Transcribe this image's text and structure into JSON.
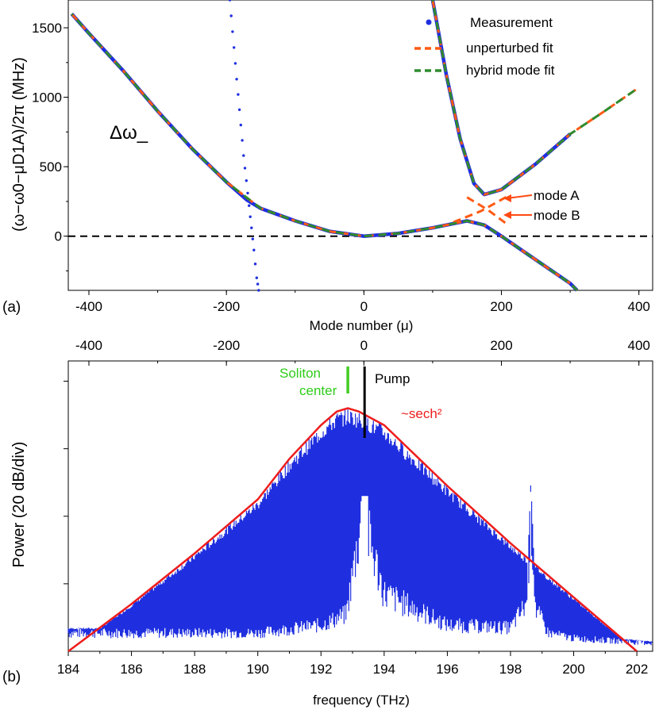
{
  "chart_data": [
    {
      "panel": "(a)",
      "type": "scatter",
      "xlabel": "Mode number (μ)",
      "ylabel": "(ω−ω0−μD1A)/2π (MHz)",
      "xlim": [
        -430,
        420
      ],
      "ylim": [
        -390,
        1700
      ],
      "x_ticks": [
        -400,
        -200,
        0,
        200,
        400
      ],
      "y_ticks": [
        0,
        500,
        1000,
        1500
      ],
      "legend": {
        "placement": "top-right",
        "entries": [
          "Measurement",
          "unperturbed fit",
          "hybrid mode fit"
        ]
      },
      "colors": {
        "measurement": "#1f2fe0",
        "unperturbed_fit": "#ff5a14",
        "hybrid_fit": "#2e8b2e",
        "zero_line": "#000000"
      },
      "annotations": {
        "branch_label": "Δω_",
        "mode_a": "mode A",
        "mode_b": "mode B"
      },
      "series": [
        {
          "name": "Measurement",
          "style": "dots",
          "segments": [
            [
              [
                -425,
                1600
              ],
              [
                -400,
                1460
              ],
              [
                -350,
                1190
              ],
              [
                -300,
                900
              ],
              [
                -250,
                630
              ],
              [
                -200,
                390
              ],
              [
                -170,
                260
              ],
              [
                -150,
                200
              ],
              [
                -100,
                110
              ],
              [
                -50,
                35
              ],
              [
                0,
                0
              ],
              [
                50,
                20
              ],
              [
                100,
                60
              ],
              [
                150,
                110
              ],
              [
                175,
                80
              ],
              [
                200,
                0
              ],
              [
                250,
                -170
              ],
              [
                300,
                -340
              ],
              [
                310,
                -390
              ]
            ],
            [
              [
                100,
                1700
              ],
              [
                120,
                1160
              ],
              [
                140,
                700
              ],
              [
                160,
                380
              ],
              [
                175,
                300
              ],
              [
                200,
                335
              ],
              [
                250,
                520
              ],
              [
                300,
                735
              ]
            ],
            [
              [
                -195,
                1700
              ],
              [
                -185,
                1130
              ],
              [
                -175,
                580
              ],
              [
                -167,
                220
              ],
              [
                -160,
                -100
              ],
              [
                -156,
                -300
              ],
              [
                -153,
                -390
              ]
            ]
          ]
        },
        {
          "name": "unperturbed fit",
          "style": "dashed",
          "segments": [
            [
              [
                -425,
                1600
              ],
              [
                -400,
                1460
              ],
              [
                -350,
                1190
              ],
              [
                -300,
                900
              ],
              [
                -250,
                630
              ],
              [
                -200,
                390
              ],
              [
                -150,
                200
              ],
              [
                -100,
                110
              ],
              [
                -50,
                35
              ],
              [
                0,
                0
              ],
              [
                50,
                20
              ],
              [
                100,
                60
              ],
              [
                150,
                110
              ],
              [
                175,
                80
              ],
              [
                200,
                0
              ],
              [
                250,
                -170
              ],
              [
                300,
                -340
              ],
              [
                310,
                -390
              ]
            ],
            [
              [
                100,
                1700
              ],
              [
                120,
                1160
              ],
              [
                140,
                700
              ],
              [
                160,
                380
              ],
              [
                175,
                300
              ],
              [
                200,
                335
              ],
              [
                250,
                520
              ],
              [
                300,
                735
              ],
              [
                350,
                900
              ],
              [
                400,
                1070
              ]
            ],
            [
              [
                150,
                280
              ],
              [
                180,
                190
              ],
              [
                210,
                80
              ]
            ],
            [
              [
                130,
                100
              ],
              [
                170,
                180
              ],
              [
                210,
                290
              ]
            ]
          ]
        },
        {
          "name": "hybrid mode fit",
          "style": "dashed",
          "segments": [
            [
              [
                -425,
                1600
              ],
              [
                -400,
                1460
              ],
              [
                -350,
                1190
              ],
              [
                -300,
                900
              ],
              [
                -250,
                630
              ],
              [
                -200,
                390
              ],
              [
                -150,
                200
              ],
              [
                -100,
                110
              ],
              [
                -50,
                35
              ],
              [
                0,
                0
              ],
              [
                50,
                20
              ],
              [
                100,
                60
              ],
              [
                150,
                110
              ],
              [
                175,
                80
              ],
              [
                200,
                0
              ],
              [
                250,
                -170
              ],
              [
                300,
                -340
              ],
              [
                310,
                -390
              ]
            ],
            [
              [
                100,
                1700
              ],
              [
                120,
                1160
              ],
              [
                140,
                700
              ],
              [
                160,
                380
              ],
              [
                175,
                300
              ],
              [
                200,
                335
              ],
              [
                250,
                520
              ],
              [
                300,
                735
              ],
              [
                350,
                900
              ],
              [
                400,
                1070
              ]
            ]
          ]
        }
      ]
    },
    {
      "panel": "(b)",
      "type": "line",
      "xlabel": "frequency (THz)",
      "ylabel": "Power (20 dB/div)",
      "xlim": [
        184,
        202.5
      ],
      "ylim_div": [
        0,
        4.3
      ],
      "x_ticks": [
        184,
        186,
        188,
        190,
        192,
        194,
        196,
        198,
        200,
        202
      ],
      "top_axis_ticks": [
        -400,
        -200,
        0,
        200,
        400
      ],
      "colors": {
        "spectrum": "#1f2fe0",
        "envelope": "#ee1c1c",
        "soliton_marker": "#44cc22",
        "pump_marker": "#000000"
      },
      "annotations": {
        "soliton_line1": "Soliton",
        "soliton_line2": "center",
        "pump": "Pump",
        "envelope": "~sech²"
      },
      "soliton_center_thz": 192.85,
      "pump_thz": 193.38,
      "envelope": {
        "name": "~sech²",
        "x": [
          184,
          186,
          188,
          190,
          191,
          192,
          192.5,
          192.85,
          193.2,
          194,
          195,
          196,
          198,
          200,
          202
        ],
        "y": [
          0.0,
          0.7,
          1.45,
          2.25,
          2.85,
          3.35,
          3.55,
          3.6,
          3.55,
          3.35,
          2.9,
          2.45,
          1.6,
          0.8,
          0.0
        ]
      },
      "spectrum_floor": {
        "x": [
          184,
          186,
          188,
          190,
          192,
          192.8,
          193.3,
          193.5,
          194,
          196,
          198,
          198.5,
          198.65,
          198.8,
          199.2,
          200,
          202.5
        ],
        "y": [
          0.35,
          0.35,
          0.35,
          0.35,
          0.5,
          0.7,
          2.6,
          2.2,
          1.1,
          0.5,
          0.45,
          0.9,
          2.6,
          0.8,
          0.35,
          0.25,
          0.15
        ]
      }
    }
  ]
}
